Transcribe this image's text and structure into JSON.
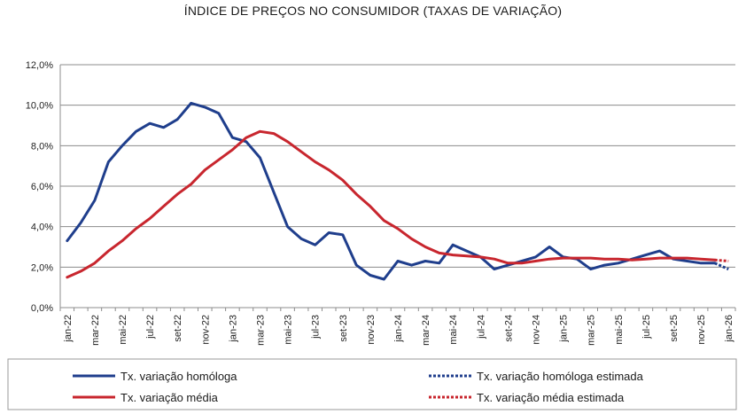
{
  "chart_data": {
    "type": "line",
    "title": "ÍNDICE DE PREÇOS NO CONSUMIDOR (TAXAS DE VARIAÇÃO)",
    "xlabel": "",
    "ylabel": "",
    "ylim": [
      0,
      12
    ],
    "yticks": [
      "0,0%",
      "2,0%",
      "4,0%",
      "6,0%",
      "8,0%",
      "10,0%",
      "12,0%"
    ],
    "grid": true,
    "months": [
      "jan-22",
      "fev-22",
      "mar-22",
      "abr-22",
      "mai-22",
      "jun-22",
      "jul-22",
      "ago-22",
      "set-22",
      "out-22",
      "nov-22",
      "dez-22",
      "jan-23",
      "fev-23",
      "mar-23",
      "abr-23",
      "mai-23",
      "jun-23",
      "jul-23",
      "ago-23",
      "set-23",
      "out-23",
      "nov-23",
      "dez-23",
      "jan-24",
      "fev-24",
      "mar-24",
      "abr-24",
      "mai-24",
      "jun-24",
      "jul-24",
      "ago-24",
      "set-24",
      "out-24",
      "nov-24",
      "dez-24",
      "jan-25",
      "fev-25",
      "mar-25",
      "abr-25",
      "mai-25",
      "jun-25",
      "jul-25",
      "ago-25",
      "set-25",
      "out-25",
      "nov-25",
      "dez-25",
      "jan-26"
    ],
    "tick_labels": [
      "jan-22",
      "mar-22",
      "mai-22",
      "jul-22",
      "set-22",
      "nov-22",
      "jan-23",
      "mar-23",
      "mai-23",
      "jul-23",
      "set-23",
      "nov-23",
      "jan-24",
      "mar-24",
      "mai-24",
      "jul-24",
      "set-24",
      "nov-24",
      "jan-25",
      "mar-25",
      "mai-25",
      "jul-25",
      "set-25",
      "nov-25",
      "jan-26"
    ],
    "series": [
      {
        "name": "Tx. variação homóloga",
        "color": "#1f3e8c",
        "style": "solid",
        "values": [
          3.3,
          4.2,
          5.3,
          7.2,
          8.0,
          8.7,
          9.1,
          8.9,
          9.3,
          10.1,
          9.9,
          9.6,
          8.4,
          8.2,
          7.4,
          5.7,
          4.0,
          3.4,
          3.1,
          3.7,
          3.6,
          2.1,
          1.6,
          1.4,
          2.3,
          2.1,
          2.3,
          2.2,
          3.1,
          2.8,
          2.5,
          1.9,
          2.1,
          2.3,
          2.5,
          3.0,
          2.5,
          2.4,
          1.9,
          2.1,
          2.2,
          2.4,
          2.6,
          2.8,
          2.4,
          2.3,
          2.2,
          2.2,
          null
        ]
      },
      {
        "name": "Tx. variação média",
        "color": "#c8262e",
        "style": "solid",
        "values": [
          1.5,
          1.8,
          2.2,
          2.8,
          3.3,
          3.9,
          4.4,
          5.0,
          5.6,
          6.1,
          6.8,
          7.3,
          7.8,
          8.4,
          8.7,
          8.6,
          8.2,
          7.7,
          7.2,
          6.8,
          6.3,
          5.6,
          5.0,
          4.3,
          3.9,
          3.4,
          3.0,
          2.7,
          2.6,
          2.55,
          2.5,
          2.4,
          2.2,
          2.2,
          2.3,
          2.4,
          2.45,
          2.45,
          2.45,
          2.4,
          2.4,
          2.35,
          2.4,
          2.45,
          2.45,
          2.45,
          2.4,
          2.35,
          null
        ]
      },
      {
        "name": "Tx. variação homóloga estimada",
        "color": "#1f3e8c",
        "style": "dotted",
        "values": [
          null,
          null,
          null,
          null,
          null,
          null,
          null,
          null,
          null,
          null,
          null,
          null,
          null,
          null,
          null,
          null,
          null,
          null,
          null,
          null,
          null,
          null,
          null,
          null,
          null,
          null,
          null,
          null,
          null,
          null,
          null,
          null,
          null,
          null,
          null,
          null,
          null,
          null,
          null,
          null,
          null,
          null,
          null,
          null,
          null,
          null,
          null,
          2.2,
          1.9
        ]
      },
      {
        "name": "Tx. variação média  estimada",
        "color": "#c8262e",
        "style": "dotted",
        "values": [
          null,
          null,
          null,
          null,
          null,
          null,
          null,
          null,
          null,
          null,
          null,
          null,
          null,
          null,
          null,
          null,
          null,
          null,
          null,
          null,
          null,
          null,
          null,
          null,
          null,
          null,
          null,
          null,
          null,
          null,
          null,
          null,
          null,
          null,
          null,
          null,
          null,
          null,
          null,
          null,
          null,
          null,
          null,
          null,
          null,
          null,
          null,
          2.35,
          2.3
        ]
      }
    ],
    "legend": {
      "placement": "bottom",
      "entries": [
        "Tx. variação homóloga",
        "Tx. variação homóloga estimada",
        "Tx. variação média",
        "Tx. variação média  estimada"
      ]
    }
  }
}
